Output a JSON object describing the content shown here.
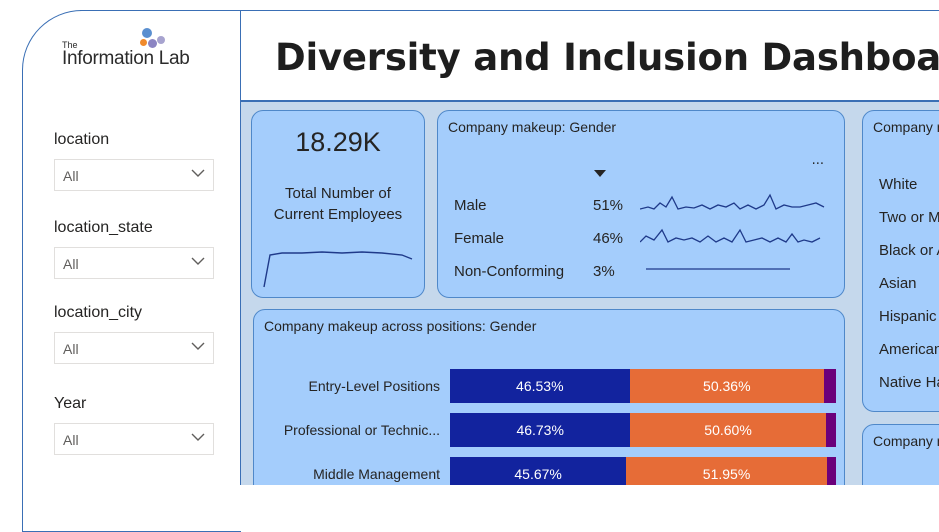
{
  "logo": {
    "the": "The",
    "name": "Information Lab"
  },
  "title": "Diversity and Inclusion Dashboard",
  "slicers": [
    {
      "label": "location",
      "value": "All"
    },
    {
      "label": "location_state",
      "value": "All"
    },
    {
      "label": "location_city",
      "value": "All"
    },
    {
      "label": "Year",
      "value": "All"
    }
  ],
  "kpi": {
    "value": "18.29K",
    "label_line1": "Total Number of",
    "label_line2": "Current Employees"
  },
  "gender_card": {
    "title": "Company makeup: Gender",
    "more": "...",
    "rows": [
      {
        "label": "Male",
        "pct": "51%"
      },
      {
        "label": "Female",
        "pct": "46%"
      },
      {
        "label": "Non-Conforming",
        "pct": "3%"
      }
    ]
  },
  "ethnicity_card": {
    "title": "Company makeup: Ethnicity",
    "rows": [
      "White",
      "Two or More",
      "Black or African American",
      "Asian",
      "Hispanic or Latino",
      "American Indian",
      "Native Hawaiian"
    ]
  },
  "positions_card": {
    "title": "Company makeup across positions: Gender",
    "colors": {
      "male": "#12239e",
      "female": "#e66c37",
      "nonconforming": "#6b007b"
    },
    "rows": [
      {
        "label": "Entry-Level Positions",
        "male": 46.53,
        "female": 50.36,
        "male_label": "46.53%",
        "female_label": "50.36%"
      },
      {
        "label": "Professional or Technic...",
        "male": 46.73,
        "female": 50.6,
        "male_label": "46.73%",
        "female_label": "50.60%"
      },
      {
        "label": "Middle Management",
        "male": 45.67,
        "female": 51.95,
        "male_label": "45.67%",
        "female_label": "51.95%"
      }
    ]
  },
  "bottom_right_card": {
    "title": "Company makeup"
  }
}
